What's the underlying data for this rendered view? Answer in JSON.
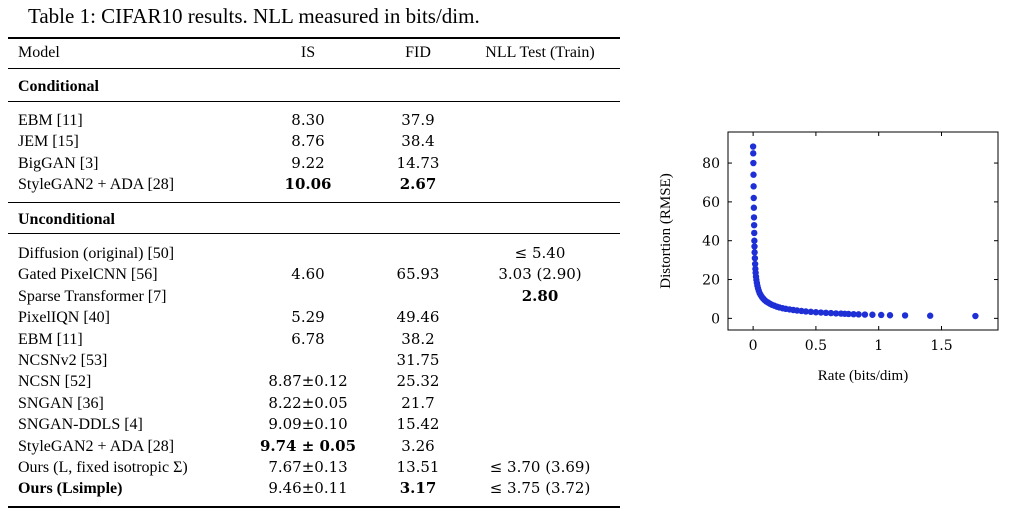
{
  "table": {
    "caption": "Table 1: CIFAR10 results. NLL measured in bits/dim.",
    "headers": {
      "model": "Model",
      "is": "IS",
      "fid": "FID",
      "nll": "NLL Test (Train)"
    },
    "sections": [
      {
        "title": "Conditional",
        "rows": [
          {
            "model": "EBM [11]",
            "is": "8.30",
            "fid": "37.9",
            "nll": ""
          },
          {
            "model": "JEM [15]",
            "is": "8.76",
            "fid": "38.4",
            "nll": ""
          },
          {
            "model": "BigGAN [3]",
            "is": "9.22",
            "fid": "14.73",
            "nll": ""
          },
          {
            "model": "StyleGAN2 + ADA [28]",
            "is": "10.06",
            "fid": "2.67",
            "nll": "",
            "bold_is": true,
            "bold_fid": true
          }
        ]
      },
      {
        "title": "Unconditional",
        "rows": [
          {
            "model": "Diffusion (original) [50]",
            "is": "",
            "fid": "",
            "nll": "≤ 5.40"
          },
          {
            "model": "Gated PixelCNN [56]",
            "is": "4.60",
            "fid": "65.93",
            "nll": "3.03 (2.90)"
          },
          {
            "model": "Sparse Transformer [7]",
            "is": "",
            "fid": "",
            "nll": "2.80",
            "bold_nll": true
          },
          {
            "model": "PixelIQN [40]",
            "is": "5.29",
            "fid": "49.46",
            "nll": ""
          },
          {
            "model": "EBM [11]",
            "is": "6.78",
            "fid": "38.2",
            "nll": ""
          },
          {
            "model": "NCSNv2 [53]",
            "is": "",
            "fid": "31.75",
            "nll": ""
          },
          {
            "model": "NCSN [52]",
            "is": "8.87±0.12",
            "fid": "25.32",
            "nll": ""
          },
          {
            "model": "SNGAN [36]",
            "is": "8.22±0.05",
            "fid": "21.7",
            "nll": ""
          },
          {
            "model": "SNGAN-DDLS [4]",
            "is": "9.09±0.10",
            "fid": "15.42",
            "nll": ""
          },
          {
            "model": "StyleGAN2 + ADA [28]",
            "is": "9.74 ± 0.05",
            "fid": "3.26",
            "nll": "",
            "bold_is": true
          },
          {
            "model": "Ours (L, fixed isotropic Σ)",
            "is": "7.67±0.13",
            "fid": "13.51",
            "nll": "≤ 3.70 (3.69)"
          },
          {
            "model": "Ours (Lsimple)",
            "is": "9.46±0.11",
            "fid": "3.17",
            "nll": "≤ 3.75 (3.72)",
            "bold_model": true,
            "bold_fid": true
          }
        ]
      }
    ]
  },
  "chart_data": {
    "type": "scatter",
    "xlabel": "Rate (bits/dim)",
    "ylabel": "Distortion (RMSE)",
    "xlim": [
      -0.2,
      1.95
    ],
    "ylim": [
      -6,
      96
    ],
    "xticks": [
      0,
      0.5,
      1,
      1.5
    ],
    "xtick_labels": [
      "0",
      "0.5",
      "1",
      "1.5"
    ],
    "yticks": [
      0,
      20,
      40,
      60,
      80
    ],
    "ytick_labels": [
      "0",
      "20",
      "40",
      "60",
      "80"
    ],
    "grid": false,
    "marker_color": "#1f2fd6",
    "points": [
      [
        0.0,
        88.5
      ],
      [
        0.001,
        85
      ],
      [
        0.002,
        80
      ],
      [
        0.003,
        74
      ],
      [
        0.004,
        68
      ],
      [
        0.005,
        62
      ],
      [
        0.006,
        57
      ],
      [
        0.007,
        52
      ],
      [
        0.008,
        48
      ],
      [
        0.009,
        44
      ],
      [
        0.01,
        40
      ],
      [
        0.011,
        37
      ],
      [
        0.012,
        34
      ],
      [
        0.014,
        31
      ],
      [
        0.016,
        28
      ],
      [
        0.018,
        25.5
      ],
      [
        0.02,
        23.5
      ],
      [
        0.023,
        21.5
      ],
      [
        0.026,
        19.8
      ],
      [
        0.03,
        18.2
      ],
      [
        0.034,
        16.8
      ],
      [
        0.039,
        15.5
      ],
      [
        0.045,
        14.2
      ],
      [
        0.052,
        13.0
      ],
      [
        0.06,
        12.0
      ],
      [
        0.07,
        11.0
      ],
      [
        0.08,
        10.2
      ],
      [
        0.092,
        9.4
      ],
      [
        0.105,
        8.7
      ],
      [
        0.12,
        8.1
      ],
      [
        0.135,
        7.5
      ],
      [
        0.15,
        7.0
      ],
      [
        0.17,
        6.5
      ],
      [
        0.19,
        6.0
      ],
      [
        0.21,
        5.6
      ],
      [
        0.235,
        5.2
      ],
      [
        0.26,
        4.9
      ],
      [
        0.29,
        4.6
      ],
      [
        0.32,
        4.3
      ],
      [
        0.35,
        4.05
      ],
      [
        0.385,
        3.8
      ],
      [
        0.42,
        3.55
      ],
      [
        0.46,
        3.35
      ],
      [
        0.5,
        3.15
      ],
      [
        0.54,
        3.0
      ],
      [
        0.58,
        2.85
      ],
      [
        0.62,
        2.7
      ],
      [
        0.66,
        2.55
      ],
      [
        0.7,
        2.45
      ],
      [
        0.73,
        2.35
      ],
      [
        0.76,
        2.25
      ],
      [
        0.8,
        2.15
      ],
      [
        0.84,
        2.05
      ],
      [
        0.89,
        1.95
      ],
      [
        0.95,
        1.85
      ],
      [
        1.02,
        1.75
      ],
      [
        1.09,
        1.6
      ],
      [
        1.21,
        1.5
      ],
      [
        1.41,
        1.35
      ],
      [
        1.77,
        1.2
      ]
    ]
  }
}
